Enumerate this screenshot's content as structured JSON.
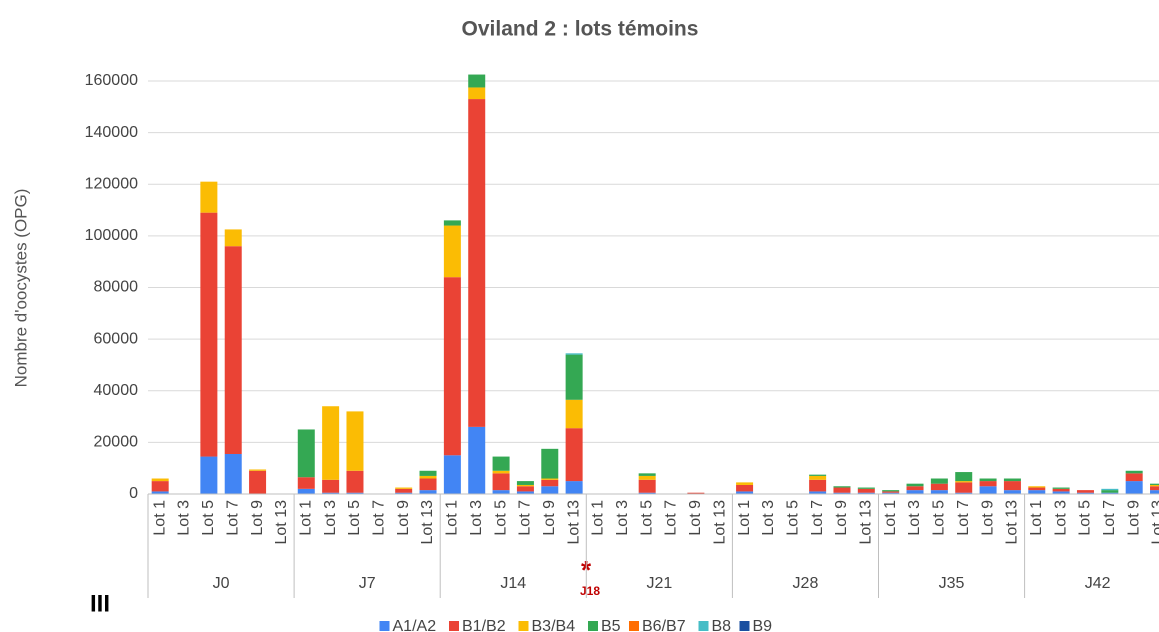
{
  "chart_data": {
    "type": "stacked_bar",
    "title": "Oviland 2 : lots témoins",
    "y_label": "Nombre d'oocystes (OPG)",
    "groups": [
      "J0",
      "J7",
      "J14",
      "J21",
      "J28",
      "J35",
      "J42"
    ],
    "categories": [
      "Lot 1",
      "Lot 3",
      "Lot 5",
      "Lot 7",
      "Lot 9",
      "Lot 13",
      "Lot 1",
      "Lot 3",
      "Lot 5",
      "Lot 7",
      "Lot 9",
      "Lot 13",
      "Lot 1",
      "Lot 3",
      "Lot 5",
      "Lot 7",
      "Lot 9",
      "Lot 13",
      "Lot 1",
      "Lot 3",
      "Lot 5",
      "Lot 7",
      "Lot 9",
      "Lot 13",
      "Lot 1",
      "Lot 3",
      "Lot 5",
      "Lot 7",
      "Lot 9",
      "Lot 13",
      "Lot 1",
      "Lot 3",
      "Lot 5",
      "Lot 7",
      "Lot 9",
      "Lot 13",
      "Lot 1",
      "Lot 3",
      "Lot 5",
      "Lot 7",
      "Lot 9",
      "Lot 13"
    ],
    "series": [
      {
        "name": "A1/A2",
        "color": "#4285f4",
        "values": [
          1000,
          0,
          14500,
          15500,
          0,
          0,
          2000,
          500,
          500,
          0,
          500,
          1500,
          15000,
          26000,
          1500,
          1000,
          3000,
          5000,
          0,
          0,
          500,
          0,
          0,
          0,
          1000,
          0,
          0,
          1000,
          500,
          500,
          500,
          1500,
          1500,
          500,
          3000,
          1500,
          1500,
          1000,
          500,
          500,
          5000,
          1500
        ]
      },
      {
        "name": "B1/B2",
        "color": "#ea4335",
        "values": [
          4000,
          0,
          94500,
          80500,
          9000,
          0,
          4500,
          5000,
          8500,
          0,
          1500,
          4500,
          69000,
          127000,
          6500,
          2000,
          2500,
          20500,
          0,
          0,
          5000,
          0,
          500,
          0,
          2500,
          0,
          0,
          4500,
          2000,
          1500,
          500,
          1500,
          2500,
          4000,
          2000,
          3500,
          1000,
          1000,
          1000,
          0,
          3000,
          1500
        ]
      },
      {
        "name": "B3/B4",
        "color": "#fbbc04",
        "values": [
          1000,
          0,
          12000,
          6500,
          500,
          0,
          0,
          28500,
          23000,
          0,
          500,
          1000,
          20000,
          4500,
          1000,
          500,
          500,
          11000,
          0,
          0,
          1500,
          0,
          0,
          0,
          1000,
          0,
          0,
          1500,
          0,
          0,
          0,
          0,
          0,
          500,
          0,
          0,
          500,
          0,
          0,
          0,
          0,
          500
        ]
      },
      {
        "name": "B5",
        "color": "#34a853",
        "values": [
          0,
          0,
          0,
          0,
          0,
          0,
          18500,
          0,
          0,
          0,
          0,
          2000,
          2000,
          5000,
          5500,
          1500,
          11500,
          17500,
          0,
          0,
          1000,
          0,
          0,
          0,
          0,
          0,
          0,
          500,
          500,
          500,
          500,
          1000,
          2000,
          3500,
          1000,
          1000,
          0,
          500,
          0,
          1000,
          1000,
          500
        ]
      },
      {
        "name": "B6/B7",
        "color": "#ff6d01",
        "values": [
          0,
          0,
          0,
          0,
          0,
          0,
          0,
          0,
          0,
          0,
          0,
          0,
          0,
          0,
          0,
          0,
          0,
          0,
          0,
          0,
          0,
          0,
          0,
          0,
          0,
          0,
          0,
          0,
          0,
          0,
          0,
          0,
          0,
          0,
          0,
          0,
          0,
          0,
          0,
          0,
          0,
          0
        ]
      },
      {
        "name": "B8",
        "color": "#46bdc6",
        "values": [
          0,
          0,
          0,
          0,
          0,
          0,
          0,
          0,
          0,
          0,
          0,
          0,
          0,
          0,
          0,
          0,
          0,
          500,
          0,
          0,
          0,
          0,
          0,
          0,
          0,
          0,
          0,
          0,
          0,
          0,
          0,
          0,
          0,
          0,
          0,
          0,
          0,
          0,
          0,
          500,
          0,
          0
        ]
      },
      {
        "name": "B9",
        "color": "#1a4fa0",
        "values": [
          0,
          0,
          0,
          0,
          0,
          0,
          0,
          0,
          0,
          0,
          0,
          0,
          0,
          0,
          0,
          0,
          0,
          0,
          0,
          0,
          0,
          0,
          0,
          0,
          0,
          0,
          0,
          0,
          0,
          0,
          0,
          0,
          0,
          0,
          0,
          0,
          0,
          0,
          0,
          0,
          0,
          0
        ]
      }
    ],
    "ylim": [
      0,
      160000
    ],
    "yticks": [
      0,
      20000,
      40000,
      60000,
      80000,
      100000,
      120000,
      140000,
      160000
    ],
    "grid": true,
    "legend": "bottom",
    "annotations": [
      "*",
      "J18"
    ],
    "panel_label": "III"
  }
}
